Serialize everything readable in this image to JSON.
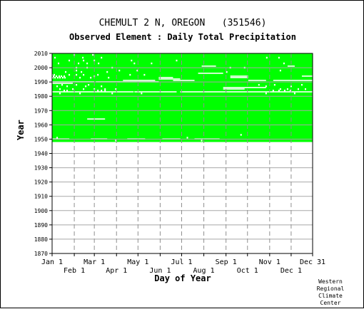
{
  "page": {
    "title": "CHEMULT 2 N, OREGON   (351546)",
    "subtitle": "Observed Element : Daily Total Precipitation",
    "credit": [
      "Western",
      "Regional",
      "Climate",
      "Center"
    ]
  },
  "chart_data": {
    "type": "heatmap",
    "title": "CHEMULT 2 N, OREGON   (351546)",
    "subtitle": "Observed Element : Daily Total Precipitation",
    "xlabel": "Day of Year",
    "ylabel": "Year",
    "xlim": [
      1,
      365
    ],
    "ylim": [
      1870,
      2010
    ],
    "y_ticks": [
      1870,
      1880,
      1890,
      1900,
      1910,
      1920,
      1930,
      1940,
      1950,
      1960,
      1970,
      1980,
      1990,
      2000,
      2010
    ],
    "x_ticks_top_row": [
      {
        "label": "Jan 1",
        "day": 1
      },
      {
        "label": "Mar 1",
        "day": 60
      },
      {
        "label": "May 1",
        "day": 121
      },
      {
        "label": "Jul 1",
        "day": 182
      },
      {
        "label": "Sep 1",
        "day": 244
      },
      {
        "label": "Nov 1",
        "day": 305
      },
      {
        "label": "Dec 31",
        "day": 365
      }
    ],
    "x_ticks_bottom_row": [
      {
        "label": "Feb 1",
        "day": 32
      },
      {
        "label": "Apr 1",
        "day": 91
      },
      {
        "label": "Jun 1",
        "day": 152
      },
      {
        "label": "Aug 1",
        "day": 213
      },
      {
        "label": "Oct 1",
        "day": 274
      },
      {
        "label": "Dec 1",
        "day": 335
      }
    ],
    "grid": true,
    "data_color": "#00ff00",
    "background_color": "#ffffff",
    "observed_years": [
      1948,
      2010
    ],
    "missing_runs": [
      {
        "year": 1950,
        "start": 1,
        "end": 25
      },
      {
        "year": 1950,
        "start": 55,
        "end": 78
      },
      {
        "year": 1950,
        "start": 106,
        "end": 131
      },
      {
        "year": 1950,
        "start": 155,
        "end": 180
      },
      {
        "year": 1950,
        "start": 200,
        "end": 235
      },
      {
        "year": 1964,
        "start": 50,
        "end": 75
      },
      {
        "year": 1983,
        "start": 1,
        "end": 115
      },
      {
        "year": 1983,
        "start": 116,
        "end": 175
      },
      {
        "year": 1983,
        "start": 180,
        "end": 365
      },
      {
        "year": 1985,
        "start": 240,
        "end": 270
      },
      {
        "year": 1986,
        "start": 240,
        "end": 300
      },
      {
        "year": 1989,
        "start": 1,
        "end": 30
      },
      {
        "year": 1990,
        "start": 1,
        "end": 60
      },
      {
        "year": 1990,
        "start": 62,
        "end": 150
      },
      {
        "year": 1991,
        "start": 100,
        "end": 145
      },
      {
        "year": 1991,
        "start": 170,
        "end": 200
      },
      {
        "year": 1991,
        "start": 275,
        "end": 300
      },
      {
        "year": 1991,
        "start": 310,
        "end": 365
      },
      {
        "year": 1992,
        "start": 150,
        "end": 180
      },
      {
        "year": 1993,
        "start": 150,
        "end": 170
      },
      {
        "year": 1993,
        "start": 250,
        "end": 275
      },
      {
        "year": 1994,
        "start": 250,
        "end": 275
      },
      {
        "year": 1994,
        "start": 350,
        "end": 365
      },
      {
        "year": 1996,
        "start": 205,
        "end": 240
      },
      {
        "year": 2001,
        "start": 210,
        "end": 230
      },
      {
        "year": 2001,
        "start": 330,
        "end": 340
      }
    ],
    "missing_days": [
      {
        "year": 1949,
        "day": 90
      },
      {
        "year": 1949,
        "day": 210
      },
      {
        "year": 1951,
        "day": 8
      },
      {
        "year": 1951,
        "day": 190
      },
      {
        "year": 1953,
        "day": 265
      },
      {
        "year": 1982,
        "day": 12
      },
      {
        "year": 1982,
        "day": 40
      },
      {
        "year": 1982,
        "day": 85
      },
      {
        "year": 1982,
        "day": 126
      },
      {
        "year": 1982,
        "day": 300
      },
      {
        "year": 1982,
        "day": 340
      },
      {
        "year": 1984,
        "day": 18
      },
      {
        "year": 1984,
        "day": 22
      },
      {
        "year": 1984,
        "day": 65
      },
      {
        "year": 1984,
        "day": 70
      },
      {
        "year": 1984,
        "day": 75
      },
      {
        "year": 1984,
        "day": 310
      },
      {
        "year": 1984,
        "day": 318
      },
      {
        "year": 1984,
        "day": 326
      },
      {
        "year": 1984,
        "day": 334
      },
      {
        "year": 1985,
        "day": 12
      },
      {
        "year": 1985,
        "day": 30
      },
      {
        "year": 1985,
        "day": 45
      },
      {
        "year": 1985,
        "day": 60
      },
      {
        "year": 1985,
        "day": 75
      },
      {
        "year": 1985,
        "day": 90
      },
      {
        "year": 1985,
        "day": 320
      },
      {
        "year": 1985,
        "day": 330
      },
      {
        "year": 1985,
        "day": 345
      },
      {
        "year": 1985,
        "day": 355
      },
      {
        "year": 1987,
        "day": 8
      },
      {
        "year": 1987,
        "day": 22
      },
      {
        "year": 1987,
        "day": 48
      },
      {
        "year": 1987,
        "day": 70
      },
      {
        "year": 1987,
        "day": 300
      },
      {
        "year": 1987,
        "day": 335
      },
      {
        "year": 1988,
        "day": 15
      },
      {
        "year": 1988,
        "day": 35
      },
      {
        "year": 1988,
        "day": 52
      },
      {
        "year": 1988,
        "day": 290
      },
      {
        "year": 1988,
        "day": 312
      },
      {
        "year": 1988,
        "day": 350
      },
      {
        "year": 1993,
        "day": 2
      },
      {
        "year": 1993,
        "day": 5
      },
      {
        "year": 1993,
        "day": 9
      },
      {
        "year": 1993,
        "day": 12
      },
      {
        "year": 1993,
        "day": 16
      },
      {
        "year": 1993,
        "day": 19
      },
      {
        "year": 1993,
        "day": 40
      },
      {
        "year": 1993,
        "day": 55
      },
      {
        "year": 1993,
        "day": 80
      },
      {
        "year": 1994,
        "day": 3
      },
      {
        "year": 1994,
        "day": 7
      },
      {
        "year": 1994,
        "day": 11
      },
      {
        "year": 1994,
        "day": 14
      },
      {
        "year": 1994,
        "day": 18
      },
      {
        "year": 1994,
        "day": 60
      },
      {
        "year": 1995,
        "day": 1
      },
      {
        "year": 1995,
        "day": 4
      },
      {
        "year": 1995,
        "day": 25
      },
      {
        "year": 1995,
        "day": 35
      },
      {
        "year": 1995,
        "day": 45
      },
      {
        "year": 1995,
        "day": 65
      },
      {
        "year": 1995,
        "day": 110
      },
      {
        "year": 1995,
        "day": 130
      },
      {
        "year": 1997,
        "day": 20
      },
      {
        "year": 1997,
        "day": 42
      },
      {
        "year": 1997,
        "day": 78
      },
      {
        "year": 1997,
        "day": 245
      },
      {
        "year": 1998,
        "day": 35
      },
      {
        "year": 1998,
        "day": 95
      },
      {
        "year": 1998,
        "day": 120
      },
      {
        "year": 1998,
        "day": 320
      },
      {
        "year": 2000,
        "day": 35
      },
      {
        "year": 2000,
        "day": 50
      },
      {
        "year": 2000,
        "day": 85
      },
      {
        "year": 2000,
        "day": 250
      },
      {
        "year": 2000,
        "day": 270
      },
      {
        "year": 2003,
        "day": 10
      },
      {
        "year": 2003,
        "day": 38
      },
      {
        "year": 2003,
        "day": 50
      },
      {
        "year": 2003,
        "day": 66
      },
      {
        "year": 2003,
        "day": 116
      },
      {
        "year": 2003,
        "day": 140
      },
      {
        "year": 2003,
        "day": 325
      },
      {
        "year": 2005,
        "day": 25
      },
      {
        "year": 2005,
        "day": 45
      },
      {
        "year": 2005,
        "day": 60
      },
      {
        "year": 2005,
        "day": 112
      },
      {
        "year": 2005,
        "day": 175
      },
      {
        "year": 2007,
        "day": 5
      },
      {
        "year": 2007,
        "day": 44
      },
      {
        "year": 2007,
        "day": 70
      },
      {
        "year": 2007,
        "day": 301
      },
      {
        "year": 2007,
        "day": 318
      },
      {
        "year": 2009,
        "day": 32
      },
      {
        "year": 2009,
        "day": 58
      }
    ]
  }
}
